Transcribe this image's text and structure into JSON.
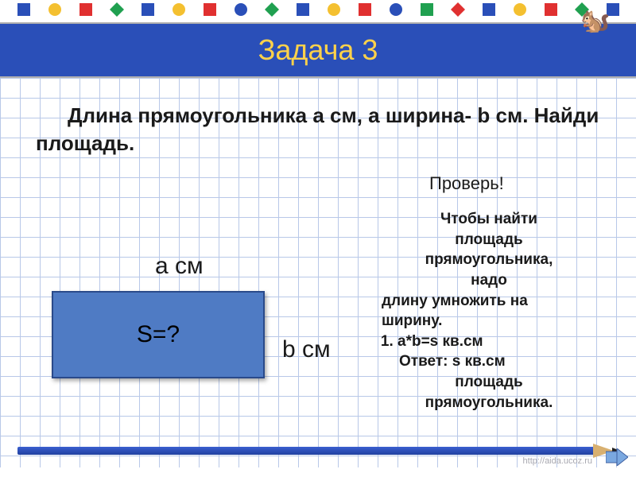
{
  "title": "Задача 3",
  "problem": "Длина прямоугольника a см, а ширина- b см. Найди площадь.",
  "check_label": "Проверь!",
  "solution": {
    "line1": "Чтобы  найти",
    "line2": "площадь",
    "line3": "прямоугольника,",
    "line4": "надо",
    "line5": "длину умножить на",
    "line6": "ширину.",
    "step1": "a*b=s кв.см",
    "answer1": "Ответ: s кв.см",
    "answer2": "площадь",
    "answer3": "прямоугольника."
  },
  "diagram": {
    "label_a": "а см",
    "label_b": "b см",
    "rect_label": "S=?",
    "rect_color": "#4f7bc4",
    "rect_border": "#2a4a8a"
  },
  "footer_link": "http://aida.ucoz.ru",
  "colors": {
    "banner_bg": "#2a4fb8",
    "title_color": "#ffd24a",
    "grid_line": "#b8c8e8",
    "text": "#1a1a1a"
  },
  "top_shapes": [
    {
      "type": "square",
      "color": "#2a4fb8"
    },
    {
      "type": "circle",
      "color": "#f4c030"
    },
    {
      "type": "square",
      "color": "#e03030"
    },
    {
      "type": "diamond",
      "color": "#20a050"
    },
    {
      "type": "square",
      "color": "#2a4fb8"
    },
    {
      "type": "circle",
      "color": "#f4c030"
    },
    {
      "type": "square",
      "color": "#e03030"
    },
    {
      "type": "circle",
      "color": "#2a4fb8"
    },
    {
      "type": "diamond",
      "color": "#20a050"
    },
    {
      "type": "square",
      "color": "#2a4fb8"
    },
    {
      "type": "circle",
      "color": "#f4c030"
    },
    {
      "type": "square",
      "color": "#e03030"
    },
    {
      "type": "circle",
      "color": "#2a4fb8"
    },
    {
      "type": "square",
      "color": "#20a050"
    },
    {
      "type": "diamond",
      "color": "#e03030"
    },
    {
      "type": "square",
      "color": "#2a4fb8"
    },
    {
      "type": "circle",
      "color": "#f4c030"
    },
    {
      "type": "square",
      "color": "#e03030"
    },
    {
      "type": "diamond",
      "color": "#20a050"
    },
    {
      "type": "square",
      "color": "#2a4fb8"
    }
  ]
}
